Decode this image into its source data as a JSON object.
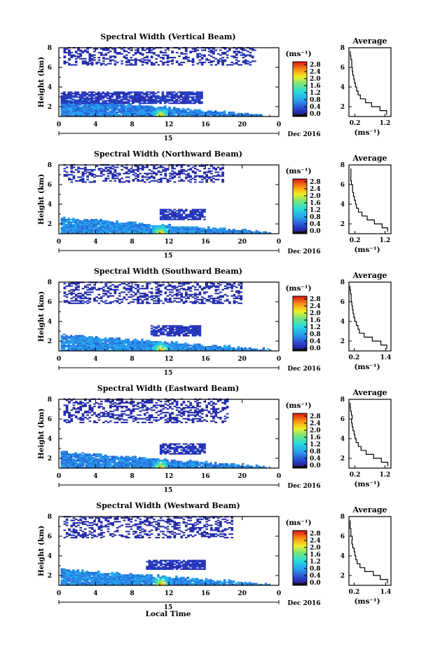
{
  "chart_data": [
    {
      "type": "heatmap",
      "title": "Spectral Width (Vertical Beam)",
      "ylabel": "Height (km)",
      "x_ticks": [
        "0",
        "4",
        "8",
        "12",
        "16",
        "20",
        "0"
      ],
      "day_label": "15",
      "date_label": "Dec 2016",
      "xlim": [
        0,
        24
      ],
      "ylim": [
        1,
        8
      ],
      "colorbar": {
        "unit": "(ms⁻¹)",
        "ticks": [
          "2.8",
          "2.4",
          "2.0",
          "1.6",
          "1.2",
          "0.8",
          "0.4",
          "0.0"
        ],
        "range": [
          0,
          2.8
        ]
      },
      "echo_layers": [
        {
          "name": "boundary-layer",
          "t_start": 0.2,
          "t_end": 22.2,
          "h_top_start": 2.7,
          "h_top_end": 1.1,
          "level": 0.7,
          "peak_time": 11.0,
          "peak_level": 2.4
        },
        {
          "name": "mid-cloud",
          "t_start": 0.2,
          "t_end": 15.5,
          "h_bottom": 2.3,
          "h_top": 3.5,
          "level": 0.25
        },
        {
          "name": "upper-cloud",
          "t_start": 0.5,
          "t_end": 21.5,
          "h_bottom": 6.2,
          "h_top": 8.0,
          "level": 0.15
        }
      ],
      "average_profile": {
        "title": "Average",
        "xlabel": "(ms⁻¹)",
        "x_ticks": [
          "0.2",
          "1.2"
        ],
        "xlim": [
          0,
          1.4
        ],
        "ylim": [
          1,
          8
        ],
        "y_ticks": [
          "2",
          "4",
          "6",
          "8"
        ],
        "heights": [
          1.2,
          1.6,
          2.0,
          2.4,
          2.8,
          3.2,
          3.6,
          4.0,
          4.4,
          4.8,
          5.2,
          5.6,
          6.0,
          6.4,
          6.8,
          7.2,
          7.6
        ],
        "values": [
          1.25,
          1.05,
          0.75,
          0.55,
          0.38,
          0.3,
          0.24,
          0.2,
          0.17,
          0.15,
          0.12,
          0.11,
          0.09,
          0.08,
          0.07,
          0.06,
          0.05
        ]
      }
    },
    {
      "type": "heatmap",
      "title": "Spectral Width (Northward Beam)",
      "ylabel": "Height (km)",
      "x_ticks": [
        "0",
        "4",
        "8",
        "12",
        "16",
        "20",
        "0"
      ],
      "day_label": "15",
      "date_label": "Dec 2016",
      "xlim": [
        0,
        24
      ],
      "ylim": [
        1,
        8
      ],
      "colorbar": {
        "unit": "(ms⁻¹)",
        "ticks": [
          "2.8",
          "2.4",
          "2.0",
          "1.6",
          "1.2",
          "0.8",
          "0.4",
          "0.0"
        ],
        "range": [
          0,
          2.8
        ]
      },
      "echo_layers": [
        {
          "name": "boundary-layer",
          "t_start": 0.2,
          "t_end": 23.2,
          "h_top_start": 2.6,
          "h_top_end": 1.1,
          "level": 0.75,
          "peak_time": 11.0,
          "peak_level": 2.5
        },
        {
          "name": "mid-cloud",
          "t_start": 11.0,
          "t_end": 16.0,
          "h_bottom": 2.4,
          "h_top": 3.5,
          "level": 0.25
        },
        {
          "name": "upper-cloud",
          "t_start": 0.5,
          "t_end": 18.0,
          "h_bottom": 6.2,
          "h_top": 8.0,
          "level": 0.15
        }
      ],
      "average_profile": {
        "title": "Average",
        "xlabel": "(ms⁻¹)",
        "x_ticks": [
          "0.2",
          "1.2"
        ],
        "xlim": [
          0,
          1.4
        ],
        "ylim": [
          1,
          8
        ],
        "y_ticks": [
          "2",
          "4",
          "6",
          "8"
        ],
        "heights": [
          1.2,
          1.6,
          2.0,
          2.4,
          2.8,
          3.2,
          3.6,
          4.0,
          4.4,
          4.8,
          5.2,
          5.6,
          6.0,
          6.4,
          6.8,
          7.2,
          7.6
        ],
        "values": [
          1.3,
          1.1,
          0.85,
          0.6,
          0.42,
          0.32,
          0.26,
          0.22,
          0.19,
          0.16,
          0.13,
          0.11,
          0.09,
          0.08,
          0.06,
          0.05,
          0.04
        ]
      }
    },
    {
      "type": "heatmap",
      "title": "Spectral Width (Southward Beam)",
      "ylabel": "Height (km)",
      "x_ticks": [
        "0",
        "4",
        "8",
        "12",
        "16",
        "20",
        "0"
      ],
      "day_label": "15",
      "date_label": "Dec 2016",
      "xlim": [
        0,
        24
      ],
      "ylim": [
        1,
        8
      ],
      "colorbar": {
        "unit": "(ms⁻¹)",
        "ticks": [
          "2.8",
          "2.4",
          "2.0",
          "1.6",
          "1.2",
          "0.8",
          "0.4",
          "0.0"
        ],
        "range": [
          0,
          2.8
        ]
      },
      "echo_layers": [
        {
          "name": "boundary-layer",
          "t_start": 0.2,
          "t_end": 23.0,
          "h_top_start": 2.6,
          "h_top_end": 1.1,
          "level": 0.75,
          "peak_time": 11.0,
          "peak_level": 2.5
        },
        {
          "name": "mid-cloud",
          "t_start": 10.0,
          "t_end": 15.5,
          "h_bottom": 2.5,
          "h_top": 3.6,
          "level": 0.25
        },
        {
          "name": "upper-cloud",
          "t_start": 0.5,
          "t_end": 20.0,
          "h_bottom": 5.8,
          "h_top": 8.0,
          "level": 0.15
        }
      ],
      "average_profile": {
        "title": "Average",
        "xlabel": "(ms⁻¹)",
        "x_ticks": [
          "0.2",
          "1.4"
        ],
        "xlim": [
          0,
          1.6
        ],
        "ylim": [
          1,
          8
        ],
        "y_ticks": [
          "2",
          "4",
          "6",
          "8"
        ],
        "heights": [
          1.2,
          1.6,
          2.0,
          2.4,
          2.8,
          3.2,
          3.6,
          4.0,
          4.4,
          4.8,
          5.2,
          5.6,
          6.0,
          6.4,
          6.8,
          7.2,
          7.6
        ],
        "values": [
          1.45,
          1.2,
          0.9,
          0.6,
          0.42,
          0.33,
          0.27,
          0.22,
          0.19,
          0.16,
          0.13,
          0.11,
          0.09,
          0.08,
          0.06,
          0.05,
          0.04
        ]
      }
    },
    {
      "type": "heatmap",
      "title": "Spectral Width (Eastward Beam)",
      "ylabel": "Height (km)",
      "x_ticks": [
        "0",
        "4",
        "8",
        "12",
        "16",
        "20",
        "0"
      ],
      "day_label": "15",
      "date_label": "Dec 2016",
      "xlim": [
        0,
        24
      ],
      "ylim": [
        1,
        8
      ],
      "colorbar": {
        "unit": "(ms⁻¹)",
        "ticks": [
          "2.8",
          "2.4",
          "2.0",
          "1.6",
          "1.2",
          "0.8",
          "0.4",
          "0.0"
        ],
        "range": [
          0,
          2.8
        ]
      },
      "echo_layers": [
        {
          "name": "boundary-layer",
          "t_start": 0.2,
          "t_end": 22.5,
          "h_top_start": 2.6,
          "h_top_end": 1.1,
          "level": 0.7,
          "peak_time": 11.0,
          "peak_level": 2.4
        },
        {
          "name": "mid-cloud",
          "t_start": 11.0,
          "t_end": 16.0,
          "h_bottom": 2.4,
          "h_top": 3.5,
          "level": 0.25
        },
        {
          "name": "upper-cloud",
          "t_start": 0.5,
          "t_end": 18.5,
          "h_bottom": 5.6,
          "h_top": 8.0,
          "level": 0.15
        }
      ],
      "average_profile": {
        "title": "Average",
        "xlabel": "(ms⁻¹)",
        "x_ticks": [
          "0.2",
          "1.2"
        ],
        "xlim": [
          0,
          1.4
        ],
        "ylim": [
          1,
          8
        ],
        "y_ticks": [
          "2",
          "4",
          "6",
          "8"
        ],
        "heights": [
          1.2,
          1.6,
          2.0,
          2.4,
          2.8,
          3.2,
          3.6,
          4.0,
          4.4,
          4.8,
          5.2,
          5.6,
          6.0,
          6.4,
          6.8,
          7.2,
          7.6
        ],
        "values": [
          1.28,
          1.08,
          0.82,
          0.58,
          0.4,
          0.3,
          0.25,
          0.21,
          0.18,
          0.15,
          0.12,
          0.1,
          0.09,
          0.08,
          0.06,
          0.05,
          0.04
        ]
      }
    },
    {
      "type": "heatmap",
      "title": "Spectral Width (Westward Beam)",
      "ylabel": "Height (km)",
      "x_ticks": [
        "0",
        "4",
        "8",
        "12",
        "16",
        "20",
        "0"
      ],
      "day_label": "15",
      "date_label": "Dec 2016",
      "xlim": [
        0,
        24
      ],
      "ylim": [
        1,
        8
      ],
      "colorbar": {
        "unit": "(ms⁻¹)",
        "ticks": [
          "2.8",
          "2.4",
          "2.0",
          "1.6",
          "1.2",
          "0.8",
          "0.4",
          "0.0"
        ],
        "range": [
          0,
          2.8
        ]
      },
      "echo_layers": [
        {
          "name": "boundary-layer",
          "t_start": 0.2,
          "t_end": 22.8,
          "h_top_start": 2.6,
          "h_top_end": 1.1,
          "level": 0.75,
          "peak_time": 11.0,
          "peak_level": 2.5
        },
        {
          "name": "mid-cloud",
          "t_start": 9.5,
          "t_end": 16.0,
          "h_bottom": 2.6,
          "h_top": 3.6,
          "level": 0.25
        },
        {
          "name": "upper-cloud",
          "t_start": 0.5,
          "t_end": 19.0,
          "h_bottom": 5.8,
          "h_top": 8.0,
          "level": 0.15
        }
      ],
      "average_profile": {
        "title": "Average",
        "xlabel": "(ms⁻¹)",
        "x_ticks": [
          "0.2",
          "1.4"
        ],
        "xlim": [
          0,
          1.6
        ],
        "ylim": [
          1,
          8
        ],
        "y_ticks": [
          "2",
          "4",
          "6",
          "8"
        ],
        "heights": [
          1.2,
          1.6,
          2.0,
          2.4,
          2.8,
          3.2,
          3.6,
          4.0,
          4.4,
          4.8,
          5.2,
          5.6,
          6.0,
          6.4,
          6.8,
          7.2,
          7.6
        ],
        "values": [
          1.48,
          1.2,
          0.95,
          0.62,
          0.43,
          0.33,
          0.27,
          0.23,
          0.19,
          0.16,
          0.13,
          0.11,
          0.09,
          0.08,
          0.06,
          0.05,
          0.04
        ]
      }
    }
  ],
  "xlabel": "Local Time"
}
